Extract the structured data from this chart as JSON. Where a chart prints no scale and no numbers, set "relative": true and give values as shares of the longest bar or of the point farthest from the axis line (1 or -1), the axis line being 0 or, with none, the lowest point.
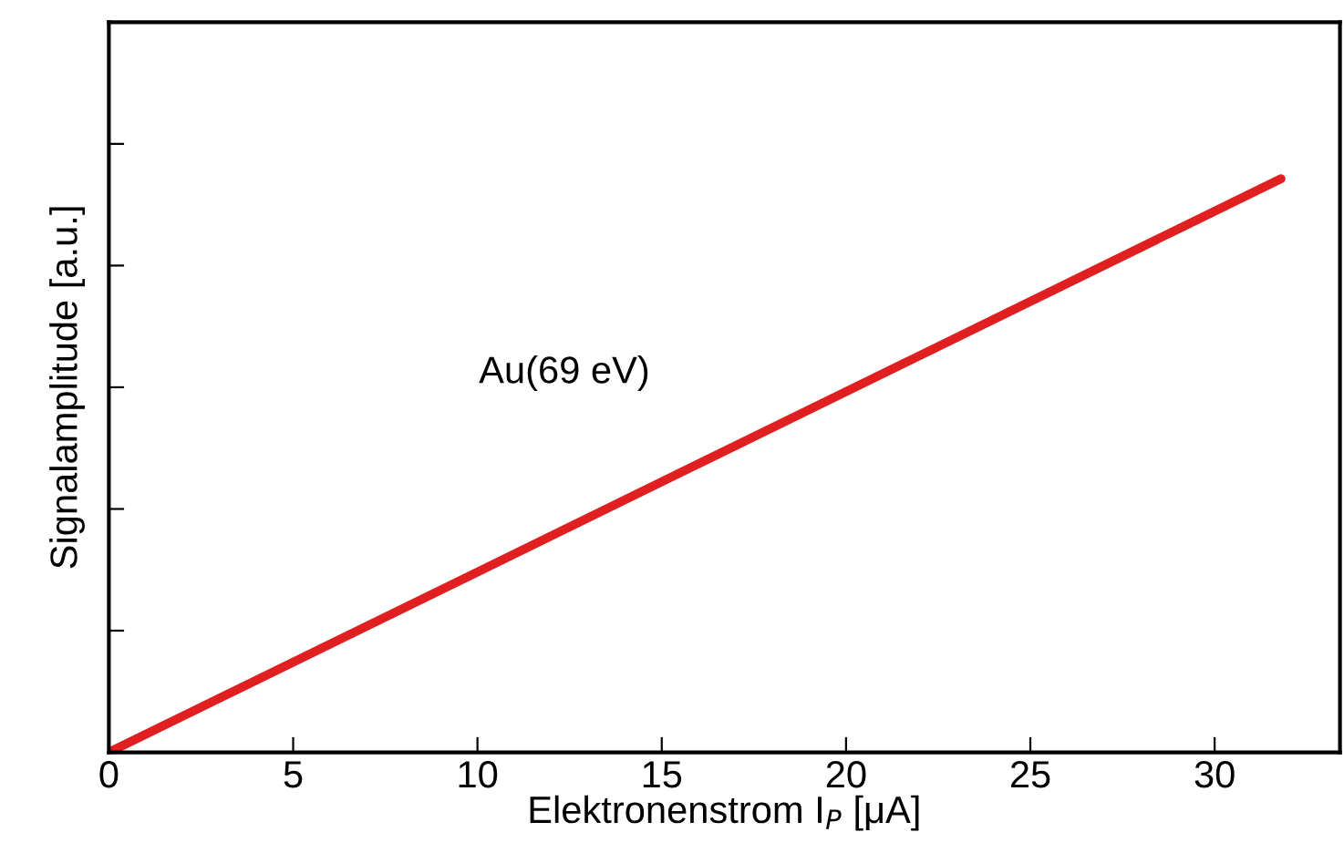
{
  "chart_data": {
    "type": "line",
    "relative": true,
    "xlabel": "Elektronenstrom I$_{P}$ [μA]",
    "ylabel": "Signalamplitude [a.u.]",
    "x": [
      0,
      31.8
    ],
    "xlim": [
      0,
      33.4
    ],
    "xticks": [
      0,
      5,
      10,
      15,
      20,
      25,
      30
    ],
    "series": [
      {
        "color": "#e02020",
        "values": [
          0,
          1
        ]
      }
    ],
    "annotations": [
      "Au(69 eV)"
    ],
    "grid": false,
    "legend": false,
    "marker": "none",
    "line_style": "solid"
  }
}
